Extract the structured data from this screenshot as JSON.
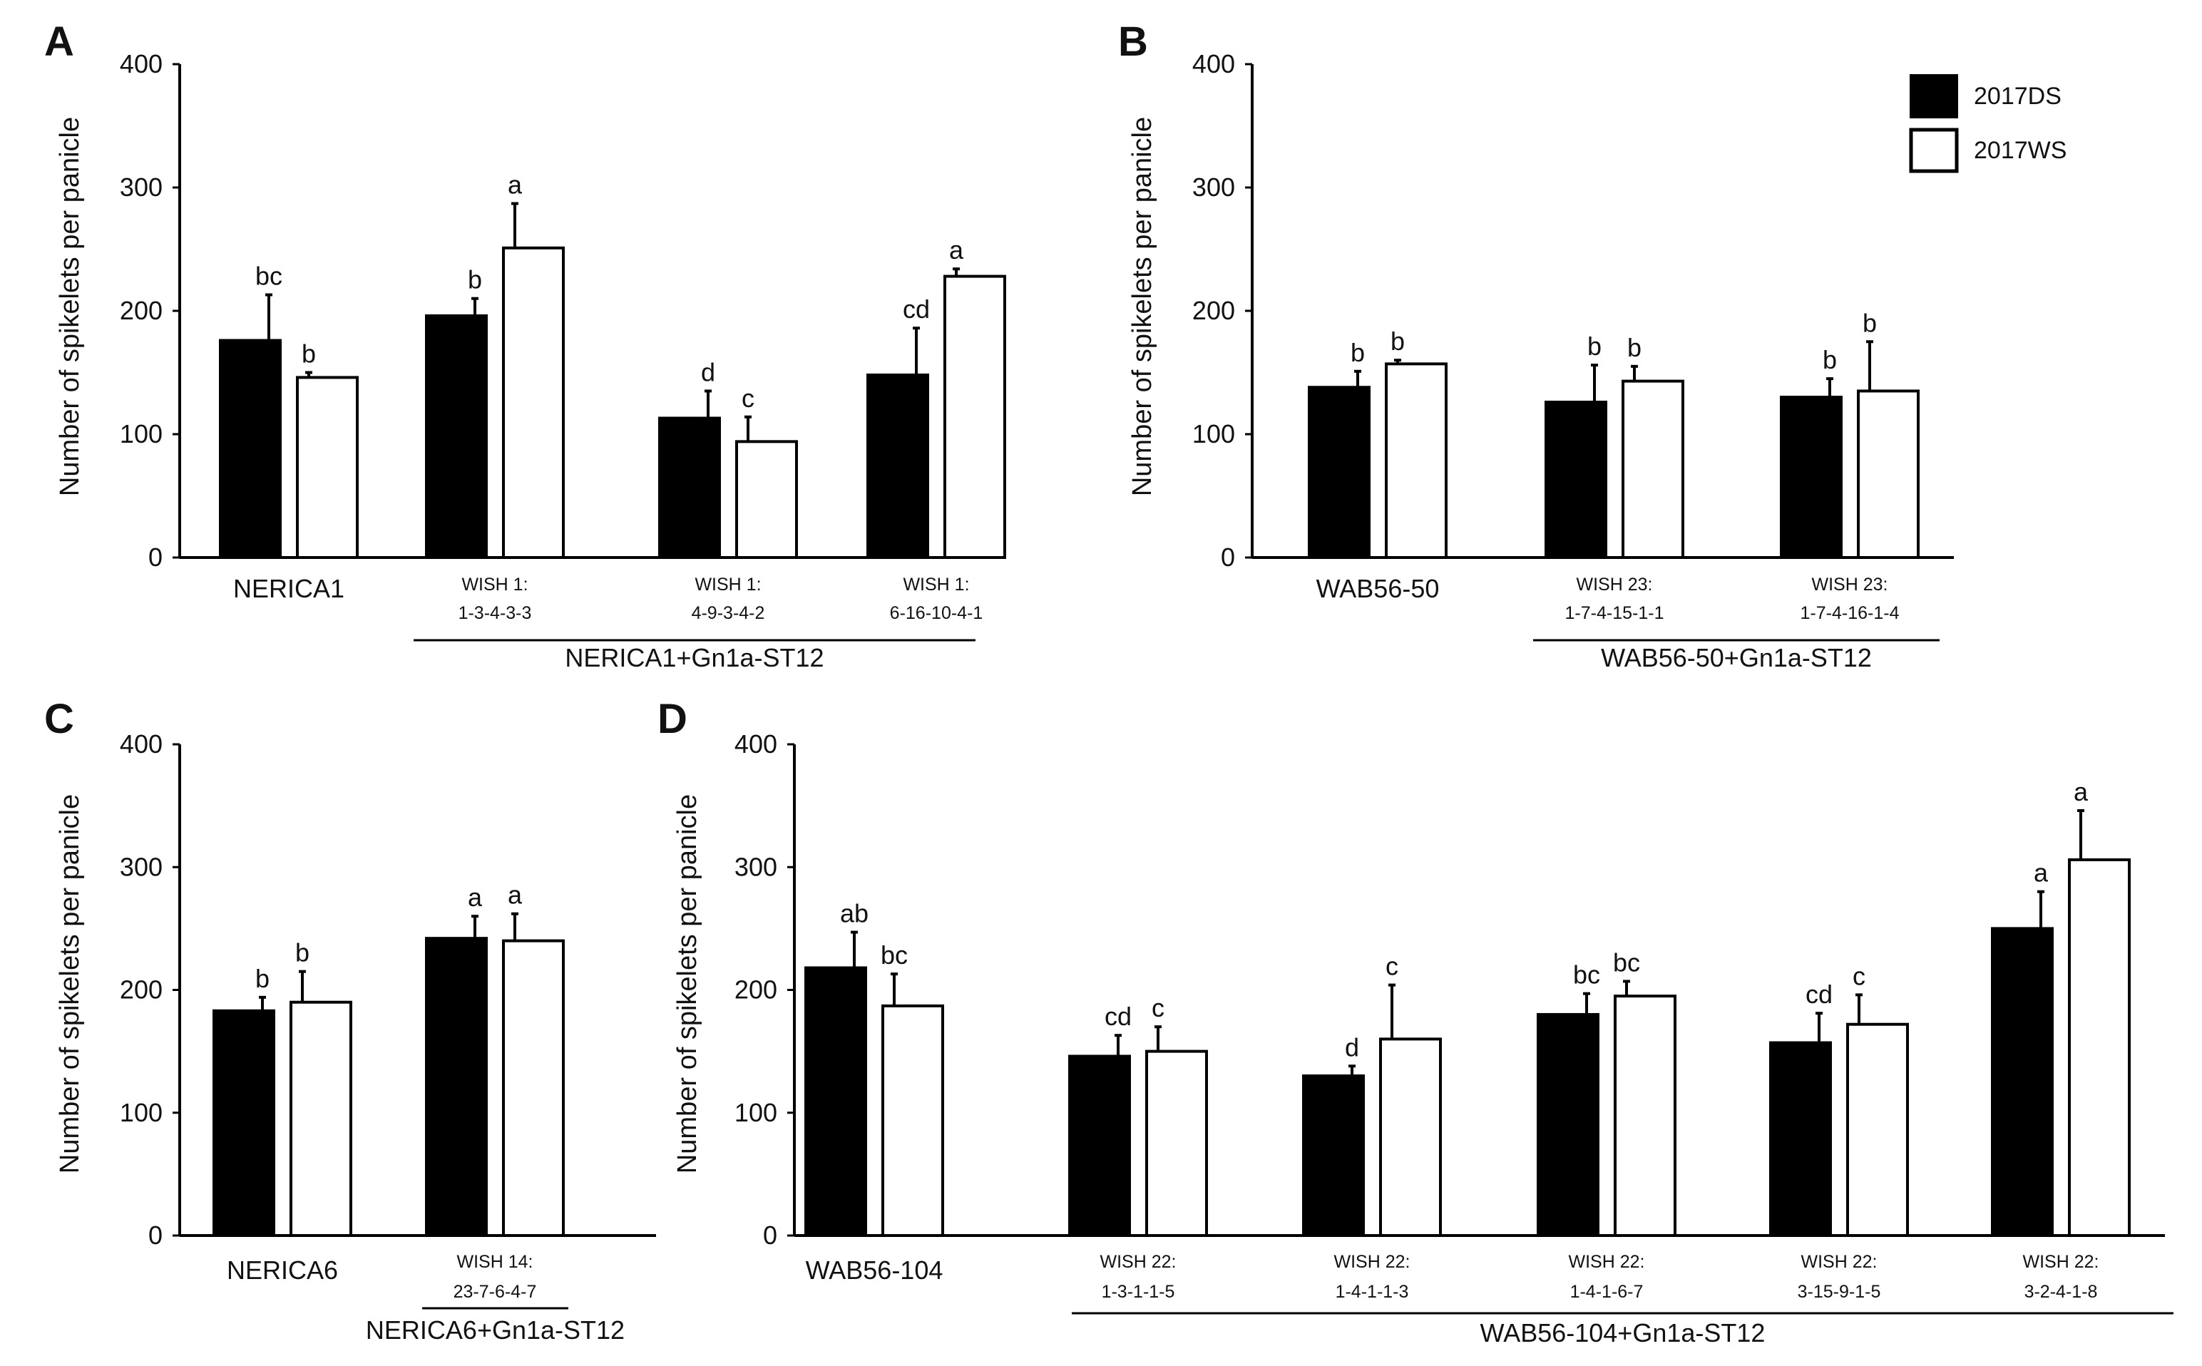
{
  "colors": {
    "ds": "#000000",
    "ws": "#ffffff",
    "axis": "#000000",
    "error": "#000000"
  },
  "legend": {
    "series": [
      {
        "name": "2017DS"
      },
      {
        "name": "2017WS"
      }
    ]
  },
  "chart_data": [
    {
      "panel": "A",
      "type": "bar",
      "title": "",
      "ylabel": "Number of spikelets per panicle",
      "ylim": [
        0,
        400
      ],
      "yticks": [
        "0",
        "100",
        "200",
        "300",
        "400"
      ],
      "categories": [
        "NERICA1",
        "WISH 1: 1-3-4-3-3",
        "WISH 1: 4-9-3-4-2",
        "WISH 1: 6-16-10-4-1"
      ],
      "category_lines": [
        [
          "NERICA1"
        ],
        [
          "WISH 1:",
          "1-3-4-3-3"
        ],
        [
          "WISH 1:",
          "4-9-3-4-2"
        ],
        [
          "WISH 1:",
          "6-16-10-4-1"
        ]
      ],
      "group": {
        "label": "NERICA1+Gn1a-ST12",
        "from": 1,
        "to": 3
      },
      "series": [
        {
          "name": "2017DS",
          "values": [
            176,
            196,
            113,
            148
          ],
          "errors": [
            37,
            14,
            22,
            38
          ],
          "labels": [
            "bc",
            "b",
            "d",
            "cd"
          ]
        },
        {
          "name": "2017WS",
          "values": [
            146,
            251,
            94,
            228
          ],
          "errors": [
            4,
            36,
            20,
            6
          ],
          "labels": [
            "b",
            "a",
            "c",
            "a"
          ]
        }
      ]
    },
    {
      "panel": "B",
      "type": "bar",
      "title": "",
      "ylabel": "Number of spikelets per panicle",
      "ylim": [
        0,
        400
      ],
      "yticks": [
        "0",
        "100",
        "200",
        "300",
        "400"
      ],
      "categories": [
        "WAB56-50",
        "WISH 23: 1-7-4-15-1-1",
        "WISH 23: 1-7-4-16-1-4"
      ],
      "category_lines": [
        [
          "WAB56-50"
        ],
        [
          "WISH 23:",
          "1-7-4-15-1-1"
        ],
        [
          "WISH 23:",
          "1-7-4-16-1-4"
        ]
      ],
      "group": {
        "label": "WAB56-50+Gn1a-ST12",
        "from": 1,
        "to": 2
      },
      "legend": "top-right",
      "series": [
        {
          "name": "2017DS",
          "values": [
            138,
            126,
            130
          ],
          "errors": [
            13,
            30,
            15
          ],
          "labels": [
            "b",
            "b",
            "b"
          ]
        },
        {
          "name": "2017WS",
          "values": [
            157,
            143,
            135
          ],
          "errors": [
            3,
            12,
            40
          ],
          "labels": [
            "b",
            "b",
            "b"
          ]
        }
      ]
    },
    {
      "panel": "C",
      "type": "bar",
      "title": "",
      "ylabel": "Number of spikelets per panicle",
      "ylim": [
        0,
        400
      ],
      "yticks": [
        "0",
        "100",
        "200",
        "300",
        "400"
      ],
      "categories": [
        "NERICA6",
        "WISH 14: 23-7-6-4-7"
      ],
      "category_lines": [
        [
          "NERICA6"
        ],
        [
          "WISH 14:",
          "23-7-6-4-7"
        ]
      ],
      "group": {
        "label": "NERICA6+Gn1a-ST12",
        "from": 1,
        "to": 1
      },
      "series": [
        {
          "name": "2017DS",
          "values": [
            183,
            242
          ],
          "errors": [
            11,
            18
          ],
          "labels": [
            "b",
            "a"
          ]
        },
        {
          "name": "2017WS",
          "values": [
            190,
            240
          ],
          "errors": [
            25,
            22
          ],
          "labels": [
            "b",
            "a"
          ]
        }
      ]
    },
    {
      "panel": "D",
      "type": "bar",
      "title": "",
      "ylabel": "Number of spikelets per panicle",
      "ylim": [
        0,
        400
      ],
      "yticks": [
        "0",
        "100",
        "200",
        "300",
        "400"
      ],
      "categories": [
        "WAB56-104",
        "WISH 22: 1-3-1-1-5",
        "WISH 22: 1-4-1-1-3",
        "WISH 22: 1-4-1-6-7",
        "WISH 22: 3-15-9-1-5",
        "WISH 22: 3-2-4-1-8"
      ],
      "category_lines": [
        [
          "WAB56-104"
        ],
        [
          "WISH 22:",
          "1-3-1-1-5"
        ],
        [
          "WISH 22:",
          "1-4-1-1-3"
        ],
        [
          "WISH 22:",
          "1-4-1-6-7"
        ],
        [
          "WISH 22:",
          "3-15-9-1-5"
        ],
        [
          "WISH 22:",
          "3-2-4-1-8"
        ]
      ],
      "group": {
        "label": "WAB56-104+Gn1a-ST12",
        "from": 1,
        "to": 5
      },
      "series": [
        {
          "name": "2017DS",
          "values": [
            218,
            146,
            130,
            180,
            157,
            250
          ],
          "errors": [
            29,
            17,
            8,
            17,
            24,
            30
          ],
          "labels": [
            "ab",
            "cd",
            "d",
            "bc",
            "cd",
            "a"
          ]
        },
        {
          "name": "2017WS",
          "values": [
            187,
            150,
            160,
            195,
            172,
            306
          ],
          "errors": [
            26,
            20,
            44,
            12,
            24,
            40
          ],
          "labels": [
            "bc",
            "c",
            "c",
            "bc",
            "c",
            "a"
          ]
        }
      ]
    }
  ]
}
